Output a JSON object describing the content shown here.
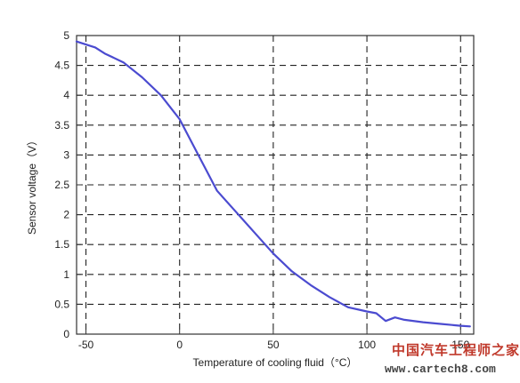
{
  "chart_data": {
    "type": "line",
    "title": "",
    "xlabel": "Temperature of cooling fluid（°C）",
    "ylabel": "Sensor voltage（V）",
    "xlim": [
      -55,
      157
    ],
    "ylim": [
      0,
      5
    ],
    "xticks": [
      -50,
      0,
      50,
      100,
      150
    ],
    "xtick_labels": [
      "-50",
      "0",
      "50",
      "100",
      "150"
    ],
    "yticks": [
      0,
      0.5,
      1,
      1.5,
      2,
      2.5,
      3,
      3.5,
      4,
      4.5,
      5
    ],
    "ytick_labels": [
      "0",
      "0.5",
      "1",
      "1.5",
      "2",
      "2.5",
      "3",
      "3.5",
      "4",
      "4.5",
      "5"
    ],
    "grid": true,
    "grid_style": "dashed",
    "line_color": "#4b4bd0",
    "series": [
      {
        "name": "",
        "x": [
          -55,
          -45,
          -40,
          -30,
          -20,
          -10,
          0,
          5,
          10,
          15,
          20,
          30,
          40,
          50,
          60,
          70,
          80,
          90,
          100,
          105,
          110,
          115,
          120,
          130,
          140,
          150,
          155
        ],
        "y": [
          4.9,
          4.8,
          4.7,
          4.55,
          4.3,
          4.0,
          3.6,
          3.3,
          3.0,
          2.7,
          2.4,
          2.05,
          1.7,
          1.35,
          1.05,
          0.82,
          0.62,
          0.45,
          0.38,
          0.35,
          0.22,
          0.28,
          0.24,
          0.2,
          0.17,
          0.14,
          0.13
        ]
      }
    ]
  },
  "watermark": {
    "name": "中国汽车工程师之家",
    "url": "www.cartech8.com"
  }
}
